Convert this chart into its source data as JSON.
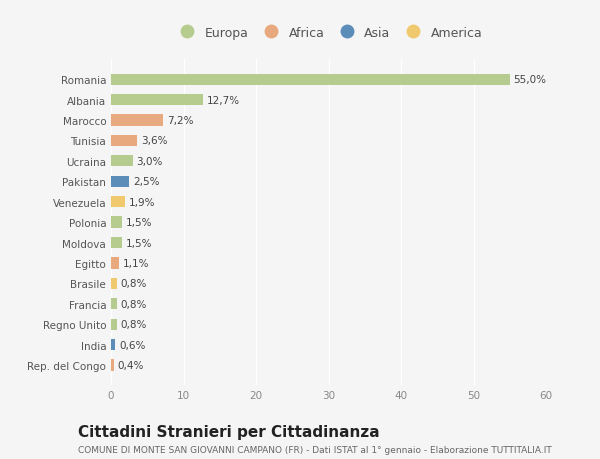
{
  "countries": [
    "Romania",
    "Albania",
    "Marocco",
    "Tunisia",
    "Ucraina",
    "Pakistan",
    "Venezuela",
    "Polonia",
    "Moldova",
    "Egitto",
    "Brasile",
    "Francia",
    "Regno Unito",
    "India",
    "Rep. del Congo"
  ],
  "values": [
    55.0,
    12.7,
    7.2,
    3.6,
    3.0,
    2.5,
    1.9,
    1.5,
    1.5,
    1.1,
    0.8,
    0.8,
    0.8,
    0.6,
    0.4
  ],
  "labels": [
    "55,0%",
    "12,7%",
    "7,2%",
    "3,6%",
    "3,0%",
    "2,5%",
    "1,9%",
    "1,5%",
    "1,5%",
    "1,1%",
    "0,8%",
    "0,8%",
    "0,8%",
    "0,6%",
    "0,4%"
  ],
  "continents": [
    "Europa",
    "Europa",
    "Africa",
    "Africa",
    "Europa",
    "Asia",
    "America",
    "Europa",
    "Europa",
    "Africa",
    "America",
    "Europa",
    "Europa",
    "Asia",
    "Africa"
  ],
  "continent_colors": {
    "Europa": "#b5cc8e",
    "Africa": "#e8a97e",
    "Asia": "#5b8db8",
    "America": "#f0c96e"
  },
  "legend_order": [
    "Europa",
    "Africa",
    "Asia",
    "America"
  ],
  "title": "Cittadini Stranieri per Cittadinanza",
  "subtitle": "COMUNE DI MONTE SAN GIOVANNI CAMPANO (FR) - Dati ISTAT al 1° gennaio - Elaborazione TUTTITALIA.IT",
  "xlim": [
    0,
    60
  ],
  "xticks": [
    0,
    10,
    20,
    30,
    40,
    50,
    60
  ],
  "background_color": "#f5f5f5",
  "bar_height": 0.55,
  "title_fontsize": 11,
  "subtitle_fontsize": 6.5,
  "label_fontsize": 7.5,
  "tick_fontsize": 7.5,
  "legend_fontsize": 9
}
